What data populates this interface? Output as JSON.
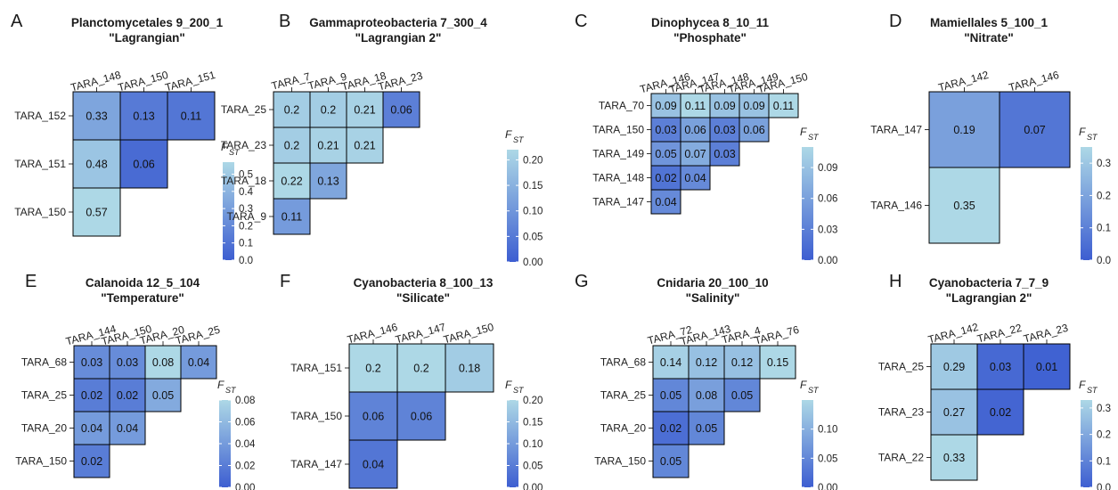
{
  "legend_title": "F",
  "legend_subscript": "ST",
  "chart_data": [
    {
      "panel": "A",
      "type": "heatmap",
      "title": "Planctomycetales 9_200_1",
      "subtitle": "\"Lagrangian\"",
      "columns": [
        "TARA_148",
        "TARA_150",
        "TARA_151"
      ],
      "rows": [
        "TARA_152",
        "TARA_151",
        "TARA_150"
      ],
      "values": [
        [
          0.33,
          0.13,
          0.11
        ],
        [
          0.48,
          0.06
        ],
        [
          0.57
        ]
      ],
      "scale_max": 0.57,
      "legend_ticks": [
        "0.5",
        "0.4",
        "0.3",
        "0.2",
        "0.1",
        "0.0"
      ]
    },
    {
      "panel": "B",
      "type": "heatmap",
      "title": "Gammaproteobacteria 7_300_4",
      "subtitle": "\"Lagrangian 2\"",
      "columns": [
        "TARA_7",
        "TARA_9",
        "TARA_18",
        "TARA_23"
      ],
      "rows": [
        "TARA_25",
        "TARA_23",
        "TARA_18",
        "TARA_9"
      ],
      "values": [
        [
          0.2,
          0.2,
          0.21,
          0.06
        ],
        [
          0.2,
          0.21,
          0.21
        ],
        [
          0.22,
          0.13
        ],
        [
          0.11
        ]
      ],
      "scale_max": 0.22,
      "legend_ticks": [
        "0.20",
        "0.15",
        "0.10",
        "0.05",
        "0.00"
      ]
    },
    {
      "panel": "C",
      "type": "heatmap",
      "title": "Dinophycea 8_10_11",
      "subtitle": "\"Phosphate\"",
      "columns": [
        "TARA_146",
        "TARA_147",
        "TARA_148",
        "TARA_149",
        "TARA_150"
      ],
      "rows": [
        "TARA_70",
        "TARA_150",
        "TARA_149",
        "TARA_148",
        "TARA_147"
      ],
      "values": [
        [
          0.09,
          0.11,
          0.09,
          0.09,
          0.11
        ],
        [
          0.03,
          0.06,
          0.03,
          0.06
        ],
        [
          0.05,
          0.07,
          0.03
        ],
        [
          0.02,
          0.04
        ],
        [
          0.04
        ]
      ],
      "scale_max": 0.11,
      "legend_ticks": [
        "0.09",
        "0.06",
        "0.03",
        "0.00"
      ]
    },
    {
      "panel": "D",
      "type": "heatmap",
      "title": "Mamiellales 5_100_1",
      "subtitle": "\"Nitrate\"",
      "columns": [
        "TARA_142",
        "TARA_146"
      ],
      "rows": [
        "TARA_147",
        "TARA_146"
      ],
      "values": [
        [
          0.19,
          0.07
        ],
        [
          0.35
        ]
      ],
      "scale_max": 0.35,
      "legend_ticks": [
        "0.3",
        "0.2",
        "0.1",
        "0.0"
      ]
    },
    {
      "panel": "E",
      "type": "heatmap",
      "title": "Calanoida 12_5_104",
      "subtitle": "\"Temperature\"",
      "columns": [
        "TARA_144",
        "TARA_150",
        "TARA_20",
        "TARA_25"
      ],
      "rows": [
        "TARA_68",
        "TARA_25",
        "TARA_20",
        "TARA_150"
      ],
      "values": [
        [
          0.03,
          0.03,
          0.08,
          0.04
        ],
        [
          0.02,
          0.02,
          0.05
        ],
        [
          0.04,
          0.04
        ],
        [
          0.02
        ]
      ],
      "scale_max": 0.08,
      "legend_ticks": [
        "0.08",
        "0.06",
        "0.04",
        "0.02",
        "0.00"
      ]
    },
    {
      "panel": "F",
      "type": "heatmap",
      "title": "Cyanobacteria 8_100_13",
      "subtitle": "\"Silicate\"",
      "columns": [
        "TARA_146",
        "TARA_147",
        "TARA_150"
      ],
      "rows": [
        "TARA_151",
        "TARA_150",
        "TARA_147"
      ],
      "values": [
        [
          0.2,
          0.2,
          0.18
        ],
        [
          0.06,
          0.06
        ],
        [
          0.04
        ]
      ],
      "scale_max": 0.2,
      "legend_ticks": [
        "0.20",
        "0.15",
        "0.10",
        "0.05",
        "0.00"
      ]
    },
    {
      "panel": "G",
      "type": "heatmap",
      "title": "Cnidaria 20_100_10",
      "subtitle": "\"Salinity\"",
      "columns": [
        "TARA_72",
        "TARA_143",
        "TARA_4",
        "TARA_76"
      ],
      "rows": [
        "TARA_68",
        "TARA_25",
        "TARA_20",
        "TARA_150"
      ],
      "values": [
        [
          0.14,
          0.12,
          0.12,
          0.15
        ],
        [
          0.05,
          0.08,
          0.05
        ],
        [
          0.02,
          0.05
        ],
        [
          0.05
        ]
      ],
      "scale_max": 0.15,
      "legend_ticks": [
        "0.10",
        "0.05",
        "0.00"
      ]
    },
    {
      "panel": "H",
      "type": "heatmap",
      "title": "Cyanobacteria 7_7_9",
      "subtitle": "\"Lagrangian 2\"",
      "columns": [
        "TARA_142",
        "TARA_22",
        "TARA_23"
      ],
      "rows": [
        "TARA_25",
        "TARA_23",
        "TARA_22"
      ],
      "values": [
        [
          0.29,
          0.03,
          0.01
        ],
        [
          0.27,
          0.02
        ],
        [
          0.33
        ]
      ],
      "scale_max": 0.33,
      "legend_ticks": [
        "0.3",
        "0.2",
        "0.1",
        "0.0"
      ]
    }
  ],
  "colors": {
    "low": "#3d5ed1",
    "high": "#add8e6",
    "border": "#000000"
  }
}
